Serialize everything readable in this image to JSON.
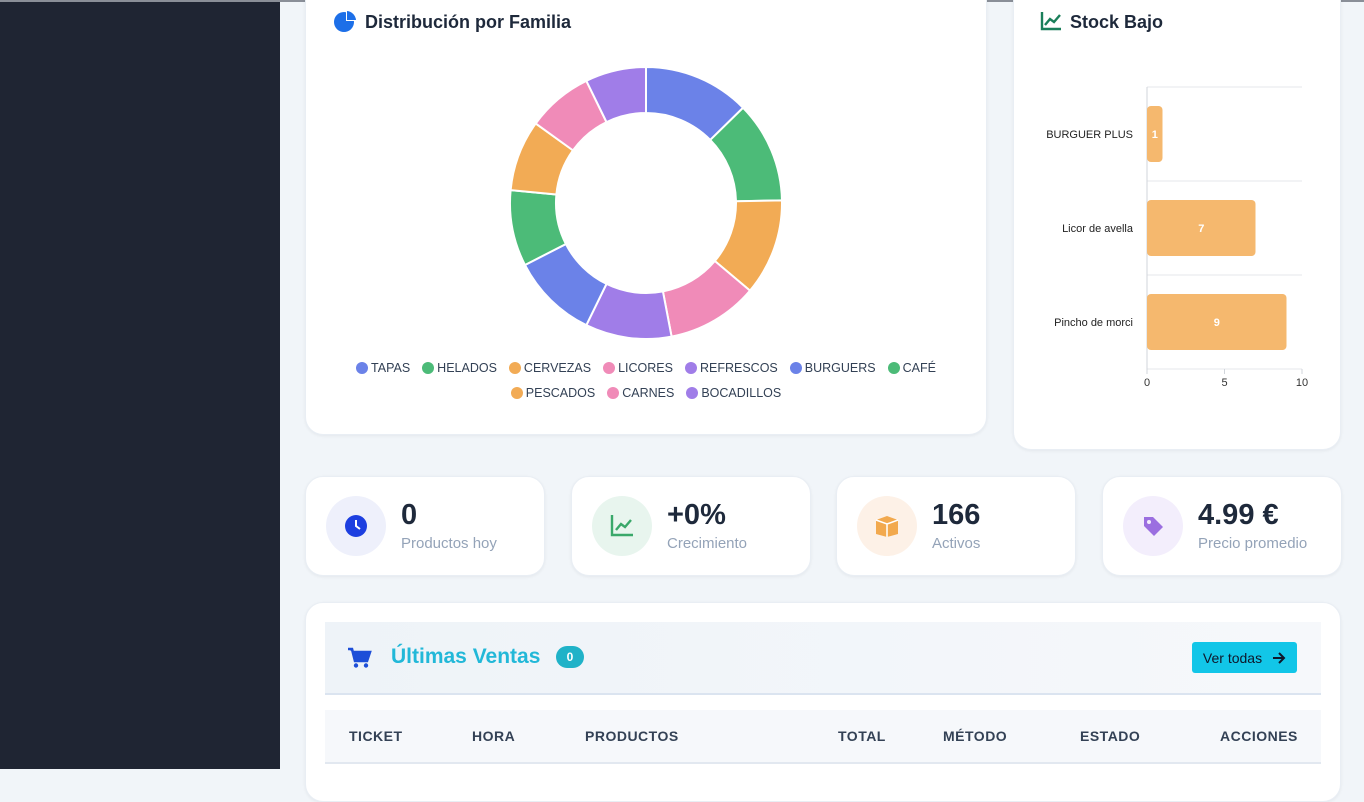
{
  "chart_data": [
    {
      "type": "donut",
      "title": "Distribución por Familia",
      "categories": [
        "TAPAS",
        "HELADOS",
        "CERVEZAS",
        "LICORES",
        "REFRESCOS",
        "BURGUERS",
        "CAFÉ",
        "PESCADOS",
        "CARNES",
        "BOCADILLOS"
      ],
      "values": [
        21,
        20,
        19,
        18,
        17,
        17,
        15,
        14,
        13,
        12
      ],
      "colors": [
        "#6b82e8",
        "#4cbb78",
        "#f2ab55",
        "#f08bb8",
        "#a07de8",
        "#6b82e8",
        "#4cbb78",
        "#f2ab55",
        "#f08bb8",
        "#a07de8"
      ],
      "legend": "bottom"
    },
    {
      "type": "bar",
      "orientation": "horizontal",
      "title": "Stock Bajo",
      "categories": [
        "BURGUER PLUS",
        "Licor de avella",
        "Pincho de morci"
      ],
      "values": [
        1,
        7,
        9
      ],
      "color": "#f5b86e",
      "xlim": [
        0,
        10
      ],
      "xticks": [
        0,
        5,
        10
      ],
      "grid": true,
      "data_labels": true
    }
  ],
  "stats": [
    {
      "value": "0",
      "label": "Productos hoy"
    },
    {
      "value": "+0%",
      "label": "Crecimiento"
    },
    {
      "value": "166",
      "label": "Activos"
    },
    {
      "value": "4.99 €",
      "label": "Precio promedio"
    }
  ],
  "sales": {
    "title": "Últimas Ventas",
    "count": "0",
    "button": "Ver todas",
    "columns": [
      "TICKET",
      "HORA",
      "PRODUCTOS",
      "TOTAL",
      "MÉTODO",
      "ESTADO",
      "ACCIONES"
    ]
  }
}
